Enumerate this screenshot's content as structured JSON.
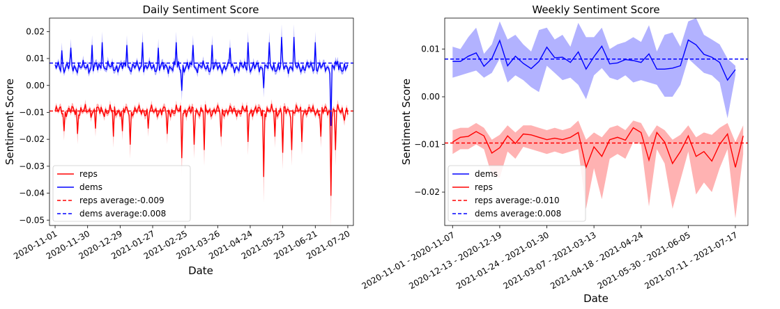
{
  "chart_data": [
    {
      "type": "line",
      "title": "Daily Sentiment Score",
      "xlabel": "Date",
      "ylabel": "Sentiment Score",
      "x_ticks": [
        "2020-11-01",
        "2020-11-30",
        "2020-12-29",
        "2021-01-27",
        "2021-02-25",
        "2021-03-26",
        "2021-04-24",
        "2021-05-23",
        "2021-06-21",
        "2021-07-20"
      ],
      "x_range_days": [
        -5,
        266
      ],
      "ylim": [
        -0.052,
        0.025
      ],
      "y_ticks": [
        -0.05,
        -0.04,
        -0.03,
        -0.02,
        -0.01,
        0.0,
        0.01,
        0.02
      ],
      "y_tick_labels": [
        "−0.05",
        "−0.04",
        "−0.03",
        "−0.02",
        "−0.01",
        "0.00",
        "0.01",
        "0.02"
      ],
      "grid": false,
      "legend_position": "lower-left",
      "series": [
        {
          "name": "reps",
          "color": "#ff0000",
          "band": true,
          "baseline": -0.0095,
          "spikes": [
            [
              8,
              -0.017
            ],
            [
              20,
              -0.018
            ],
            [
              36,
              -0.016
            ],
            [
              52,
              -0.019
            ],
            [
              60,
              -0.017
            ],
            [
              67,
              -0.022
            ],
            [
              83,
              -0.016
            ],
            [
              100,
              -0.018
            ],
            [
              113,
              -0.027
            ],
            [
              124,
              -0.022
            ],
            [
              133,
              -0.024
            ],
            [
              148,
              -0.019
            ],
            [
              172,
              -0.021
            ],
            [
              186,
              -0.034
            ],
            [
              196,
              -0.019
            ],
            [
              203,
              -0.025
            ],
            [
              211,
              -0.024
            ],
            [
              220,
              -0.021
            ],
            [
              237,
              -0.019
            ],
            [
              246,
              -0.041
            ],
            [
              250,
              -0.024
            ],
            [
              258,
              -0.013
            ]
          ]
        },
        {
          "name": "dems",
          "color": "#0000ff",
          "band": true,
          "baseline": 0.0068,
          "spikes": [
            [
              6,
              0.013
            ],
            [
              14,
              0.014
            ],
            [
              33,
              0.015
            ],
            [
              42,
              0.016
            ],
            [
              64,
              0.015
            ],
            [
              78,
              0.016
            ],
            [
              92,
              0.014
            ],
            [
              108,
              0.016
            ],
            [
              123,
              0.015
            ],
            [
              140,
              0.015
            ],
            [
              156,
              0.014
            ],
            [
              172,
              0.016
            ],
            [
              191,
              0.016
            ],
            [
              202,
              0.018
            ],
            [
              213,
              0.018
            ],
            [
              232,
              0.016
            ],
            [
              252,
              0.009
            ]
          ],
          "dips": [
            [
              113,
              -0.002
            ],
            [
              186,
              -0.001
            ],
            [
              246,
              -0.015
            ]
          ]
        },
        {
          "name": "reps average:-0.009",
          "color": "#ff0000",
          "style": "dashed",
          "value": -0.0095
        },
        {
          "name": "dems average:0.008",
          "color": "#0000ff",
          "style": "dashed",
          "value": 0.0083
        }
      ]
    },
    {
      "type": "line",
      "title": "Weekly Sentiment Score",
      "xlabel": "Date",
      "ylabel": "Sentiment Score",
      "x_ticks": [
        "2020-11-01 - 2020-11-07",
        "2020-12-13 - 2020-12-19",
        "2021-01-24 - 2021-01-30",
        "2021-03-07 - 2021-03-13",
        "2021-04-18 - 2021-04-24",
        "2021-05-30 - 2021-06-05",
        "2021-07-11 - 2021-07-17"
      ],
      "x_tick_weeks": [
        0,
        6,
        12,
        18,
        24,
        30,
        36
      ],
      "ylim": [
        -0.027,
        0.0165
      ],
      "y_ticks": [
        -0.02,
        -0.01,
        0.0,
        0.01
      ],
      "y_tick_labels": [
        "−0.02",
        "−0.01",
        "0.00",
        "0.01"
      ],
      "grid": false,
      "legend_position": "lower-left",
      "series": [
        {
          "name": "dems",
          "color": "#0000ff",
          "band": true,
          "values": [
            0.0074,
            0.0074,
            0.0085,
            0.0092,
            0.0064,
            0.008,
            0.0118,
            0.0065,
            0.0085,
            0.007,
            0.0059,
            0.0074,
            0.0104,
            0.0082,
            0.0083,
            0.0072,
            0.0094,
            0.0058,
            0.0084,
            0.0106,
            0.0069,
            0.0071,
            0.0078,
            0.0076,
            0.0072,
            0.009,
            0.0058,
            0.0058,
            0.006,
            0.0065,
            0.0119,
            0.0109,
            0.0089,
            0.0083,
            0.0072,
            0.0035,
            0.0057
          ],
          "upper": [
            0.0105,
            0.01,
            0.0125,
            0.0145,
            0.009,
            0.011,
            0.0158,
            0.012,
            0.013,
            0.011,
            0.0095,
            0.014,
            0.0145,
            0.012,
            0.013,
            0.0105,
            0.0155,
            0.0125,
            0.0125,
            0.0145,
            0.01,
            0.011,
            0.0115,
            0.0125,
            0.0115,
            0.015,
            0.0095,
            0.013,
            0.0135,
            0.0105,
            0.0158,
            0.0165,
            0.013,
            0.012,
            0.011,
            0.008,
            0.0065
          ],
          "lower": [
            0.004,
            0.0045,
            0.005,
            0.0055,
            0.004,
            0.005,
            0.008,
            0.003,
            0.0045,
            0.0035,
            0.002,
            0.001,
            0.0065,
            0.005,
            0.0035,
            0.004,
            0.0025,
            -0.0005,
            0.0045,
            0.006,
            0.004,
            0.0035,
            0.0045,
            0.003,
            0.0035,
            0.003,
            0.0025,
            0.0,
            0.0,
            0.0025,
            0.008,
            0.0065,
            0.005,
            0.0045,
            0.003,
            -0.0045,
            0.0045
          ]
        },
        {
          "name": "reps",
          "color": "#ff0000",
          "band": true,
          "values": [
            -0.0095,
            -0.0085,
            -0.0083,
            -0.0073,
            -0.0082,
            -0.0118,
            -0.0107,
            -0.0082,
            -0.0098,
            -0.0078,
            -0.008,
            -0.0085,
            -0.009,
            -0.0087,
            -0.009,
            -0.0085,
            -0.0075,
            -0.0148,
            -0.0105,
            -0.0125,
            -0.009,
            -0.0085,
            -0.0091,
            -0.0065,
            -0.0075,
            -0.0133,
            -0.0075,
            -0.0095,
            -0.014,
            -0.0115,
            -0.0082,
            -0.0125,
            -0.0115,
            -0.0135,
            -0.01,
            -0.0078,
            -0.0148,
            -0.0082
          ],
          "upper": [
            -0.007,
            -0.0065,
            -0.0065,
            -0.0055,
            -0.0065,
            -0.009,
            -0.008,
            -0.006,
            -0.0075,
            -0.006,
            -0.006,
            -0.0065,
            -0.007,
            -0.0065,
            -0.007,
            -0.0065,
            -0.005,
            -0.009,
            -0.0075,
            -0.0085,
            -0.0065,
            -0.006,
            -0.007,
            -0.005,
            -0.0055,
            -0.0085,
            -0.006,
            -0.007,
            -0.009,
            -0.008,
            -0.006,
            -0.0085,
            -0.0075,
            -0.008,
            -0.0065,
            -0.0055,
            -0.0095,
            -0.006
          ],
          "lower": [
            -0.012,
            -0.011,
            -0.011,
            -0.01,
            -0.011,
            -0.0165,
            -0.017,
            -0.0115,
            -0.013,
            -0.0105,
            -0.011,
            -0.0115,
            -0.012,
            -0.0115,
            -0.012,
            -0.0115,
            -0.011,
            -0.0235,
            -0.015,
            -0.0215,
            -0.013,
            -0.012,
            -0.013,
            -0.0095,
            -0.01,
            -0.023,
            -0.011,
            -0.014,
            -0.0235,
            -0.0175,
            -0.0115,
            -0.0205,
            -0.018,
            -0.02,
            -0.015,
            -0.011,
            -0.0255,
            -0.012
          ]
        },
        {
          "name": "reps average:-0.010",
          "color": "#ff0000",
          "style": "dashed",
          "value": -0.0097
        },
        {
          "name": "dems average:0.008",
          "color": "#0000ff",
          "style": "dashed",
          "value": 0.0079
        }
      ]
    }
  ]
}
